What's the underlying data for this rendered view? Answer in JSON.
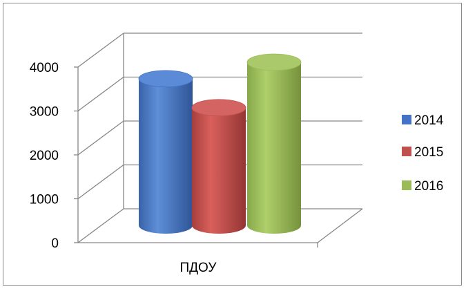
{
  "chart_data": {
    "type": "bar",
    "style": "3d-cylinder",
    "categories": [
      "ПДОУ"
    ],
    "series": [
      {
        "name": "2014",
        "values": [
          3550
        ],
        "color": "#4472C4"
      },
      {
        "name": "2015",
        "values": [
          2850
        ],
        "color": "#C0504D"
      },
      {
        "name": "2016",
        "values": [
          3950
        ],
        "color": "#9BBB59"
      }
    ],
    "ylim": [
      0,
      4000
    ],
    "yticks": [
      "0",
      "1000",
      "2000",
      "3000",
      "4000"
    ],
    "grid": true,
    "legend": "right"
  }
}
